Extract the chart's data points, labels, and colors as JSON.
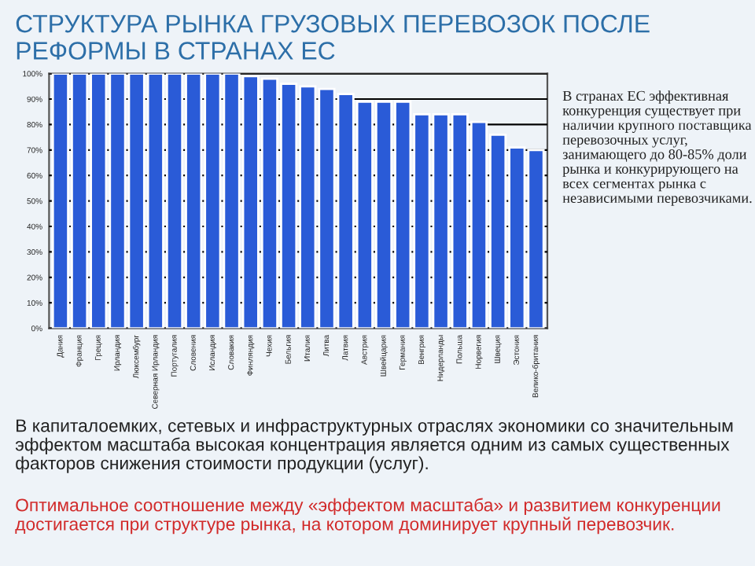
{
  "chart_data": {
    "type": "bar",
    "title": "СТРУКТУРА РЫНКА ГРУЗОВЫХ ПЕРЕВОЗОК ПОСЛЕ РЕФОРМЫ В СТРАНАХ ЕС",
    "categories": [
      "Дания",
      "Франция",
      "Греция",
      "Ирландия",
      "Люксембург",
      "Северная Ирландия",
      "Португалия",
      "Словения",
      "Исландия",
      "Словакия",
      "Финляндия",
      "Чехия",
      "Бельгия",
      "Италия",
      "Литва",
      "Латвия",
      "Австрия",
      "Швейцария",
      "Германия",
      "Венгрия",
      "Нидерланды",
      "Польша",
      "Норвегия",
      "Швеция",
      "Эстония",
      "Велико-британия"
    ],
    "values": [
      100,
      100,
      100,
      100,
      100,
      100,
      100,
      100,
      100,
      100,
      99,
      98,
      96,
      95,
      94,
      92,
      89,
      89,
      89,
      84,
      84,
      84,
      81,
      76,
      71,
      70
    ],
    "color": "#2a5bd7",
    "ylim": [
      0,
      100
    ],
    "yticks": [
      {
        "value": 0,
        "label": "0%"
      },
      {
        "value": 10,
        "label": "10%"
      },
      {
        "value": 20,
        "label": "20%"
      },
      {
        "value": 30,
        "label": "30%"
      },
      {
        "value": 40,
        "label": "40%"
      },
      {
        "value": 50,
        "label": "50%"
      },
      {
        "value": 60,
        "label": "60%"
      },
      {
        "value": 70,
        "label": "70%"
      },
      {
        "value": 80,
        "label": "80%"
      },
      {
        "value": 90,
        "label": "90%"
      },
      {
        "value": 100,
        "label": "100%"
      }
    ],
    "grid": "y",
    "annotations": [
      "В странах ЕС эффективная конкуренция существует при наличии крупного поставщика перевозочных услуг, занимающего до 80-85% доли рынка и конкурирующего на всех сегментах рынка с независимыми перевозчиками.",
      "В капиталоемких, сетевых и инфраструктурных отраслях экономики со значительным эффектом масштаба высокая концентрация является одним из самых существенных факторов снижения стоимости продукции (услуг).",
      "Оптимальное соотношение между «эффектом масштаба» и развитием конкуренции достигается при структуре рынка, на котором доминирует крупный перевозчик."
    ]
  }
}
